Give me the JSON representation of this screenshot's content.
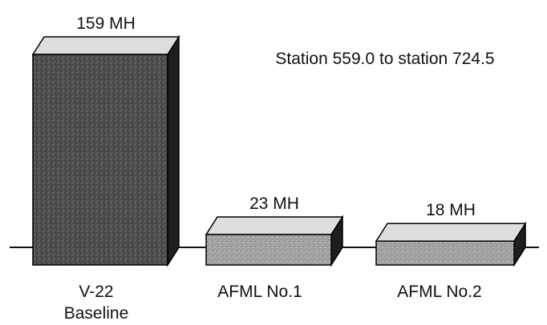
{
  "chart_data": {
    "type": "bar",
    "categories": [
      {
        "line1": "V-22",
        "line2": "Baseline"
      },
      {
        "line1": "AFML No.1",
        "line2": ""
      },
      {
        "line1": "AFML No.2",
        "line2": ""
      }
    ],
    "values": [
      159,
      23,
      18
    ],
    "value_labels": [
      "159 MH",
      "23 MH",
      "18 MH"
    ],
    "annotation": "Station 559.0 to station 724.5",
    "ylim": [
      0,
      159
    ],
    "grid": false,
    "legend": "none",
    "colors": {
      "front_dark": "#555555",
      "front_light": "#9a9a9a",
      "top": "#dedede",
      "side": "#1e1e1e",
      "baseline": "#111111"
    }
  }
}
